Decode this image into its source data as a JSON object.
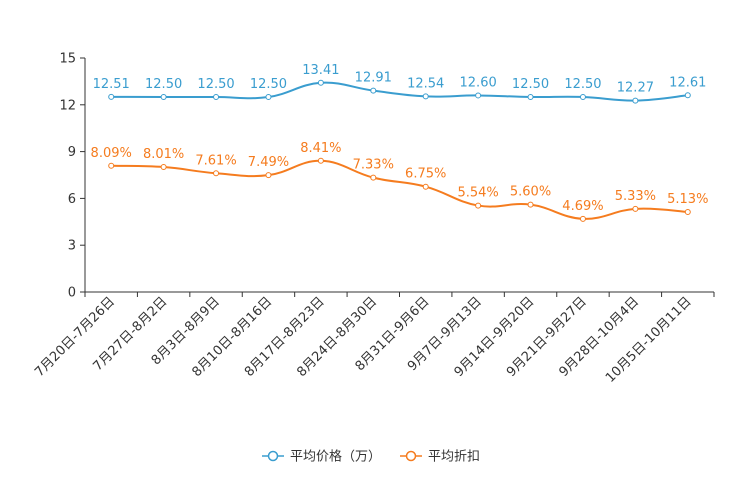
{
  "chart_data": {
    "type": "line",
    "title": "",
    "xlabel": "",
    "ylabel": "",
    "ylim": [
      0,
      15
    ],
    "yticks": [
      0,
      3,
      6,
      9,
      12,
      15
    ],
    "grid": false,
    "legend_position": "bottom-center",
    "categories": [
      "7月20日-7月26日",
      "7月27日-8月2日",
      "8月3日-8月9日",
      "8月10日-8月16日",
      "8月17日-8月23日",
      "8月24日-8月30日",
      "8月31日-9月6日",
      "9月7日-9月13日",
      "9月14日-9月20日",
      "9月21日-9月27日",
      "9月28日-10月4日",
      "10月5日-10月11日"
    ],
    "series": [
      {
        "name": "平均价格（万）",
        "color": "#3a9dcf",
        "values": [
          12.51,
          12.5,
          12.5,
          12.5,
          13.41,
          12.91,
          12.54,
          12.6,
          12.5,
          12.5,
          12.27,
          12.61
        ],
        "labels": [
          "12.51",
          "12.50",
          "12.50",
          "12.50",
          "13.41",
          "12.91",
          "12.54",
          "12.60",
          "12.50",
          "12.50",
          "12.27",
          "12.61"
        ]
      },
      {
        "name": "平均折扣",
        "color": "#f57c1f",
        "values": [
          8.09,
          8.01,
          7.61,
          7.49,
          8.41,
          7.33,
          6.75,
          5.54,
          5.6,
          4.69,
          5.33,
          5.13
        ],
        "labels": [
          "8.09%",
          "8.01%",
          "7.61%",
          "7.49%",
          "8.41%",
          "7.33%",
          "6.75%",
          "5.54%",
          "5.60%",
          "4.69%",
          "5.33%",
          "5.13%"
        ]
      }
    ]
  }
}
